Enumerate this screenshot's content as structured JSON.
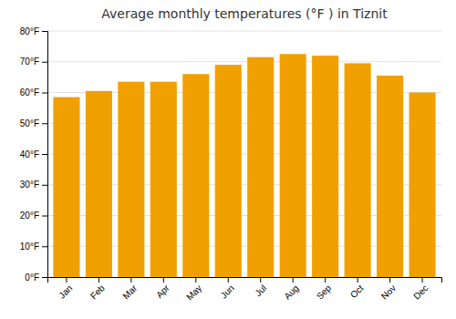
{
  "chart_data": {
    "type": "bar",
    "title": "Average monthly temperatures (°F ) in Tiznit",
    "categories": [
      "Jan",
      "Feb",
      "Mar",
      "Apr",
      "May",
      "Jun",
      "Jul",
      "Aug",
      "Sep",
      "Oct",
      "Nov",
      "Dec"
    ],
    "values": [
      58.5,
      60.5,
      63.5,
      63.5,
      66.0,
      69.0,
      71.5,
      72.5,
      72.0,
      69.5,
      65.5,
      60.0
    ],
    "color": "#F0A000",
    "ylim": [
      0,
      80
    ],
    "yticks": [
      {
        "value": 0,
        "label": "0°F"
      },
      {
        "value": 10,
        "label": "10°F"
      },
      {
        "value": 20,
        "label": "20°F"
      },
      {
        "value": 30,
        "label": "30°F"
      },
      {
        "value": 40,
        "label": "40°F"
      },
      {
        "value": 50,
        "label": "50°F"
      },
      {
        "value": 60,
        "label": "60°F"
      },
      {
        "value": 70,
        "label": "70°F"
      },
      {
        "value": 80,
        "label": "80°F"
      }
    ],
    "grid": true
  }
}
